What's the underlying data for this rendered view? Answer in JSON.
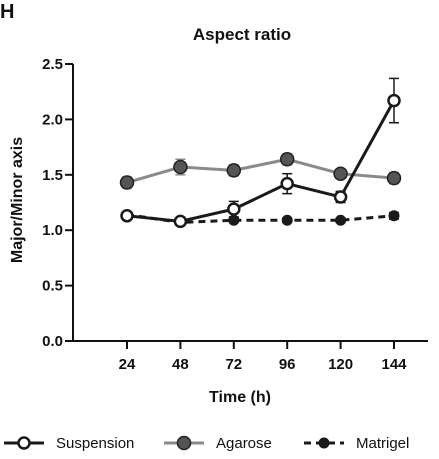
{
  "chart_data": {
    "type": "line",
    "panel_letter": "H",
    "title": "Aspect ratio",
    "xlabel": "Time (h)",
    "ylabel": "Major/Minor axis",
    "categories": [
      "24",
      "48",
      "72",
      "96",
      "120",
      "144"
    ],
    "ylim": [
      0.0,
      2.5
    ],
    "yticks": [
      "0.0",
      "0.5",
      "1.0",
      "1.5",
      "2.0",
      "2.5"
    ],
    "grid": false,
    "legend_position": "bottom",
    "series": [
      {
        "name": "Suspension",
        "values": [
          1.13,
          1.08,
          1.19,
          1.42,
          1.3,
          2.17
        ],
        "errors": [
          0.03,
          0.03,
          0.07,
          0.09,
          0.05,
          0.2
        ],
        "color": "#1a1a1a",
        "line_style": "solid",
        "marker": "open-circle"
      },
      {
        "name": "Agarose",
        "values": [
          1.43,
          1.57,
          1.54,
          1.64,
          1.51,
          1.47
        ],
        "errors": [
          0.05,
          0.07,
          0.05,
          0.05,
          0.04,
          0.05
        ],
        "color": "#8a8a8a",
        "line_style": "solid",
        "marker": "filled-circle"
      },
      {
        "name": "Matrigel",
        "values": [
          1.14,
          1.07,
          1.09,
          1.09,
          1.09,
          1.13
        ],
        "errors": [
          0.02,
          0.02,
          0.02,
          0.02,
          0.02,
          0.03
        ],
        "color": "#1a1a1a",
        "line_style": "dashed",
        "marker": "small-filled-circle"
      }
    ]
  }
}
